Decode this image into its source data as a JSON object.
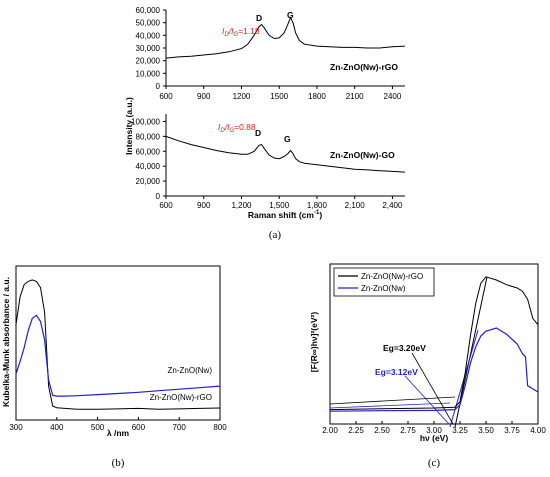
{
  "panel_a": {
    "caption": "(a)",
    "ylabel": "Intensity (a.u.)",
    "top": {
      "label": "Zn-ZnO(Nw)-rGO",
      "ratio": "I_D/I_G=1.18",
      "ratio_prefix": "I",
      "ratio_sub1": "D",
      "ratio_mid": "/I",
      "ratio_sub2": "G",
      "ratio_value": "=1.18",
      "peak_d": "D",
      "peak_g": "G",
      "yticks": [
        "0",
        "10,000",
        "20,000",
        "30,000",
        "40,000",
        "50,000",
        "60,000"
      ],
      "xticks": [
        "600",
        "900",
        "1200",
        "1500",
        "1800",
        "2100",
        "2400"
      ]
    },
    "bottom": {
      "label": "Zn-ZnO(Nw)-GO",
      "ratio_prefix": "I",
      "ratio_sub1": "D",
      "ratio_mid": "/I",
      "ratio_sub2": "G",
      "ratio_value": "=0.88",
      "peak_d": "D",
      "peak_g": "G",
      "yticks": [
        "0",
        "20,000",
        "40,000",
        "60,000",
        "80,000",
        "100,000"
      ],
      "xticks": [
        "600",
        "900",
        "1,200",
        "1,500",
        "1,800",
        "2,100",
        "2,400"
      ]
    },
    "xlabel_text": "Raman shift (cm",
    "xlabel_sup": "-1",
    "xlabel_end": ")"
  },
  "panel_b": {
    "caption": "(b)",
    "ylabel": "Kubelka-Munk absorbance / a.u.",
    "xlabel": "λ /nm",
    "xticks": [
      "300",
      "400",
      "500",
      "600",
      "700",
      "800"
    ],
    "series_labels": [
      "Zn-ZnO(Nw)",
      "Zn-ZnO(Nw)-rGO"
    ]
  },
  "panel_c": {
    "caption": "(c)",
    "ylabel": "[F(R∞)hν]²(eV²)",
    "xlabel": "hν (eV)",
    "xticks": [
      "2.00",
      "2.25",
      "2.50",
      "2.75",
      "3.00",
      "3.25",
      "3.50",
      "3.75",
      "4.00"
    ],
    "legend": [
      "Zn-ZnO(Nw)-rGO",
      "Zn-ZnO(Nw)"
    ],
    "eg_black": "Eg=3.20eV",
    "eg_blue": "Eg=3.12eV"
  },
  "colors": {
    "red": "#e02020",
    "blue": "#1f1fd6",
    "black": "#000000"
  },
  "chart_data": [
    {
      "type": "line",
      "title": "",
      "xlabel": "Raman shift (cm-1)",
      "ylabel": "Intensity (a.u.)",
      "xlim": [
        600,
        2500
      ],
      "ylim": [
        0,
        60000
      ],
      "series": [
        {
          "name": "Zn-ZnO(Nw)-rGO",
          "x": [
            600,
            700,
            800,
            900,
            1000,
            1100,
            1200,
            1250,
            1300,
            1340,
            1360,
            1380,
            1420,
            1460,
            1500,
            1540,
            1570,
            1590,
            1610,
            1630,
            1660,
            1700,
            1800,
            1900,
            2000,
            2100,
            2200,
            2300,
            2400,
            2500
          ],
          "y": [
            22000,
            23000,
            23500,
            24500,
            25500,
            27000,
            29500,
            33000,
            40000,
            47000,
            48500,
            46000,
            40000,
            37500,
            38000,
            42000,
            49000,
            54000,
            50000,
            42000,
            36000,
            33000,
            31500,
            31000,
            30500,
            30500,
            30000,
            30000,
            31000,
            31500
          ]
        }
      ]
    },
    {
      "type": "line",
      "title": "",
      "xlabel": "Raman shift (cm-1)",
      "ylabel": "Intensity (a.u.)",
      "xlim": [
        600,
        2500
      ],
      "ylim": [
        0,
        110000
      ],
      "series": [
        {
          "name": "Zn-ZnO(Nw)-GO",
          "x": [
            600,
            700,
            800,
            900,
            1000,
            1100,
            1200,
            1250,
            1300,
            1340,
            1360,
            1380,
            1420,
            1460,
            1500,
            1540,
            1570,
            1590,
            1610,
            1630,
            1660,
            1700,
            1800,
            1900,
            2000,
            2100,
            2200,
            2300,
            2400,
            2500
          ],
          "y": [
            80000,
            74000,
            69000,
            65000,
            61000,
            58000,
            56000,
            56000,
            60000,
            68000,
            69000,
            64000,
            55000,
            51000,
            50000,
            53000,
            57000,
            61000,
            57000,
            50000,
            46000,
            44000,
            42000,
            40000,
            38000,
            36000,
            35000,
            34000,
            33000,
            32000
          ]
        }
      ]
    },
    {
      "type": "line",
      "title": "",
      "xlabel": "λ /nm",
      "ylabel": "Kubelka-Munk absorbance / a.u.",
      "xlim": [
        300,
        800
      ],
      "ylim": [
        0,
        1
      ],
      "series": [
        {
          "name": "Zn-ZnO(Nw)-rGO",
          "x": [
            300,
            310,
            320,
            330,
            340,
            350,
            360,
            370,
            380,
            390,
            400,
            420,
            450,
            500,
            550,
            600,
            650,
            700,
            750,
            800
          ],
          "y": [
            0.62,
            0.8,
            0.88,
            0.9,
            0.91,
            0.9,
            0.86,
            0.7,
            0.22,
            0.09,
            0.08,
            0.075,
            0.07,
            0.07,
            0.072,
            0.075,
            0.07,
            0.072,
            0.075,
            0.078
          ]
        },
        {
          "name": "Zn-ZnO(Nw)",
          "x": [
            300,
            310,
            320,
            330,
            340,
            350,
            360,
            370,
            380,
            390,
            400,
            420,
            450,
            500,
            550,
            600,
            650,
            700,
            750,
            800
          ],
          "y": [
            0.3,
            0.38,
            0.47,
            0.58,
            0.66,
            0.68,
            0.64,
            0.52,
            0.26,
            0.16,
            0.155,
            0.155,
            0.158,
            0.165,
            0.172,
            0.18,
            0.19,
            0.2,
            0.21,
            0.22
          ]
        }
      ]
    },
    {
      "type": "line",
      "title": "",
      "xlabel": "hν (eV)",
      "ylabel": "[F(R∞)hν]²(eV²)",
      "xlim": [
        2.0,
        4.0
      ],
      "ylim": [
        0,
        1
      ],
      "series": [
        {
          "name": "Zn-ZnO(Nw)-rGO",
          "x": [
            2.0,
            2.5,
            3.0,
            3.2,
            3.25,
            3.3,
            3.35,
            3.4,
            3.45,
            3.5,
            3.6,
            3.7,
            3.8,
            3.85,
            3.9,
            3.95,
            4.0
          ],
          "y": [
            0.09,
            0.095,
            0.1,
            0.105,
            0.14,
            0.32,
            0.55,
            0.75,
            0.88,
            0.92,
            0.9,
            0.87,
            0.85,
            0.83,
            0.78,
            0.66,
            0.62
          ]
        },
        {
          "name": "Zn-ZnO(Nw)",
          "x": [
            2.0,
            2.5,
            3.0,
            3.2,
            3.25,
            3.3,
            3.35,
            3.4,
            3.45,
            3.5,
            3.6,
            3.7,
            3.8,
            3.85,
            3.88,
            3.9,
            4.0
          ],
          "y": [
            0.08,
            0.083,
            0.085,
            0.09,
            0.12,
            0.24,
            0.38,
            0.48,
            0.55,
            0.58,
            0.6,
            0.56,
            0.5,
            0.44,
            0.42,
            0.24,
            0.2
          ]
        }
      ],
      "annotations": [
        "Eg=3.20eV",
        "Eg=3.12eV"
      ]
    }
  ]
}
